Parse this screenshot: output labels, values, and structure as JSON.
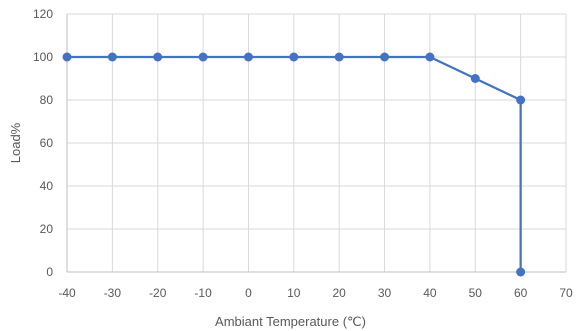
{
  "chart_data": {
    "type": "line",
    "title": "",
    "xlabel": "Ambiant Temperature (℃)",
    "ylabel": "Load%",
    "xlim": [
      -40,
      70
    ],
    "ylim": [
      0,
      120
    ],
    "x_ticks": [
      -40,
      -30,
      -20,
      -10,
      0,
      10,
      20,
      30,
      40,
      50,
      60,
      70
    ],
    "y_ticks": [
      0,
      20,
      40,
      60,
      80,
      100,
      120
    ],
    "grid": true,
    "legend": "none",
    "series": [
      {
        "color": "#4472c4",
        "x": [
          -40,
          -30,
          -20,
          -10,
          0,
          10,
          20,
          30,
          40,
          50,
          60,
          60
        ],
        "y": [
          100,
          100,
          100,
          100,
          100,
          100,
          100,
          100,
          100,
          90,
          80,
          0
        ]
      }
    ],
    "grid_color": "#d9d9d9",
    "axis_color": "#bfbfbf"
  }
}
